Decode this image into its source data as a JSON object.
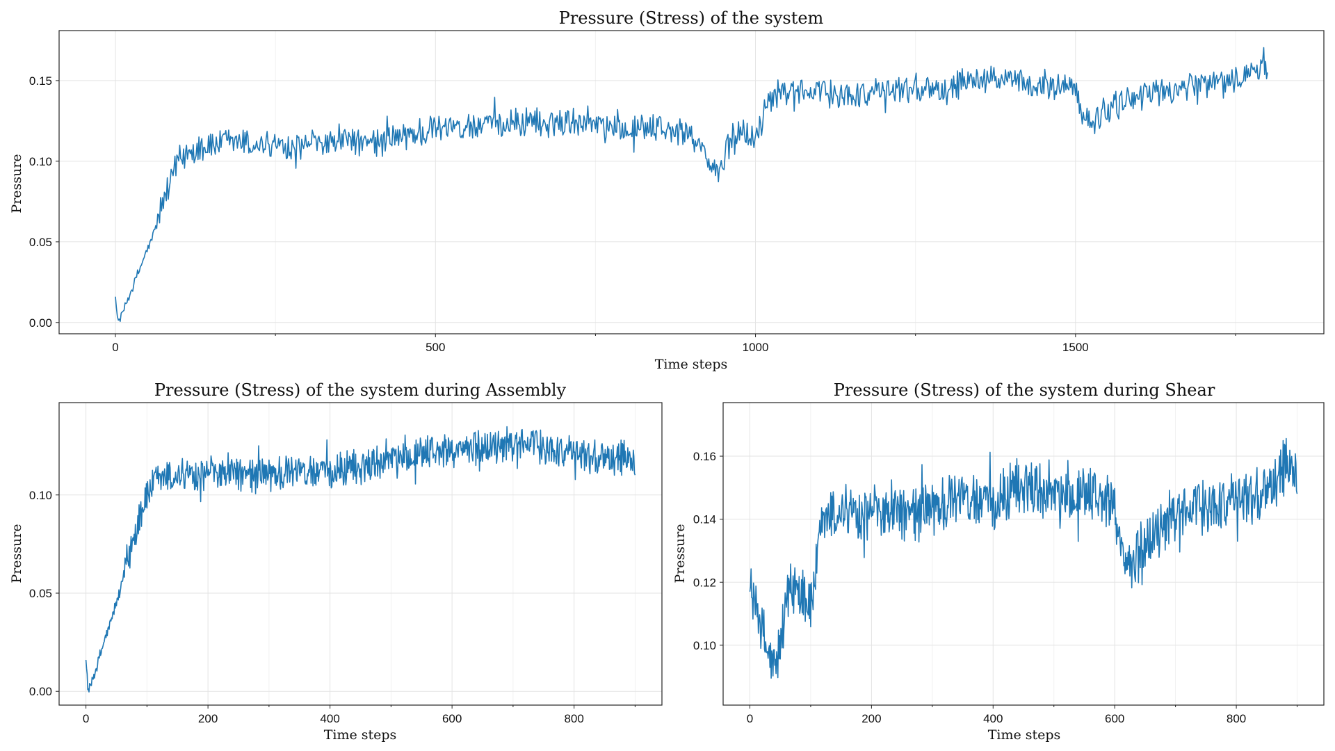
{
  "chart_data": [
    {
      "type": "line",
      "title": "Pressure (Stress) of the system",
      "xlabel": "Time steps",
      "ylabel": "Pressure",
      "xlim": [
        -88,
        1888
      ],
      "ylim": [
        -0.007,
        0.181
      ],
      "xticks": [
        0,
        500,
        1000,
        1500
      ],
      "xtick_labels": [
        "0",
        "500",
        "1000",
        "1500"
      ],
      "xminor": [
        250,
        750,
        1250,
        1750
      ],
      "yticks": [
        0.0,
        0.05,
        0.1,
        0.15
      ],
      "ytick_labels": [
        "0.00",
        "0.05",
        "0.10",
        "0.15"
      ],
      "grid": true,
      "color": "#1f77b4",
      "series": [
        {
          "x": [
            0,
            3,
            8,
            15,
            25,
            35,
            45,
            55,
            65,
            75,
            85,
            95,
            105,
            115,
            130,
            150,
            175,
            200,
            250,
            300,
            350,
            400,
            450,
            500,
            550,
            600,
            650,
            700,
            725,
            750,
            800,
            850,
            900,
            915,
            930,
            945,
            960,
            975,
            990,
            1000,
            1020,
            1050,
            1100,
            1150,
            1200,
            1250,
            1300,
            1350,
            1400,
            1450,
            1500,
            1515,
            1530,
            1545,
            1560,
            1600,
            1650,
            1700,
            1750,
            1780,
            1800
          ],
          "values": [
            0.016,
            0.001,
            0.003,
            0.01,
            0.02,
            0.03,
            0.04,
            0.05,
            0.062,
            0.075,
            0.086,
            0.096,
            0.103,
            0.106,
            0.108,
            0.11,
            0.111,
            0.111,
            0.11,
            0.11,
            0.112,
            0.111,
            0.115,
            0.12,
            0.121,
            0.123,
            0.124,
            0.125,
            0.126,
            0.124,
            0.121,
            0.12,
            0.117,
            0.11,
            0.095,
            0.094,
            0.112,
            0.12,
            0.116,
            0.112,
            0.138,
            0.143,
            0.142,
            0.141,
            0.143,
            0.147,
            0.144,
            0.152,
            0.149,
            0.148,
            0.145,
            0.126,
            0.125,
            0.131,
            0.134,
            0.141,
            0.144,
            0.146,
            0.15,
            0.156,
            0.155
          ]
        }
      ]
    },
    {
      "type": "line",
      "title": "Pressure (Stress) of the system during Assembly",
      "xlabel": "Time steps",
      "ylabel": "Pressure",
      "xlim": [
        -44,
        944
      ],
      "ylim": [
        -0.007,
        0.147
      ],
      "xticks": [
        0,
        200,
        400,
        600,
        800
      ],
      "xtick_labels": [
        "0",
        "200",
        "400",
        "600",
        "800"
      ],
      "xminor": [
        100,
        300,
        500,
        700,
        900
      ],
      "yticks": [
        0.0,
        0.05,
        0.1
      ],
      "ytick_labels": [
        "0.00",
        "0.05",
        "0.10"
      ],
      "grid": true,
      "color": "#1f77b4",
      "series": [
        {
          "x": [
            0,
            3,
            8,
            15,
            25,
            35,
            45,
            55,
            65,
            75,
            85,
            95,
            105,
            115,
            130,
            150,
            175,
            200,
            250,
            300,
            350,
            400,
            450,
            500,
            550,
            600,
            650,
            700,
            725,
            750,
            800,
            850,
            900
          ],
          "values": [
            0.016,
            0.001,
            0.003,
            0.01,
            0.02,
            0.03,
            0.04,
            0.05,
            0.062,
            0.075,
            0.086,
            0.096,
            0.103,
            0.106,
            0.108,
            0.11,
            0.111,
            0.111,
            0.11,
            0.11,
            0.112,
            0.111,
            0.115,
            0.12,
            0.121,
            0.123,
            0.124,
            0.125,
            0.126,
            0.124,
            0.121,
            0.12,
            0.117
          ]
        }
      ]
    },
    {
      "type": "line",
      "title": "Pressure (Stress) of the system during Shear",
      "xlabel": "Time steps",
      "ylabel": "Pressure",
      "xlim": [
        -44,
        944
      ],
      "ylim": [
        0.081,
        0.177
      ],
      "xticks": [
        0,
        200,
        400,
        600,
        800
      ],
      "xtick_labels": [
        "0",
        "200",
        "400",
        "600",
        "800"
      ],
      "xminor": [
        100,
        300,
        500,
        700,
        900
      ],
      "yticks": [
        0.1,
        0.12,
        0.14,
        0.16
      ],
      "ytick_labels": [
        "0.10",
        "0.12",
        "0.14",
        "0.16"
      ],
      "grid": true,
      "color": "#1f77b4",
      "series": [
        {
          "x": [
            0,
            15,
            30,
            45,
            60,
            75,
            90,
            100,
            120,
            150,
            200,
            250,
            300,
            350,
            400,
            450,
            500,
            550,
            600,
            615,
            630,
            645,
            660,
            700,
            750,
            800,
            850,
            880,
            900
          ],
          "values": [
            0.117,
            0.11,
            0.095,
            0.094,
            0.112,
            0.12,
            0.116,
            0.112,
            0.138,
            0.143,
            0.142,
            0.141,
            0.143,
            0.147,
            0.144,
            0.152,
            0.149,
            0.148,
            0.145,
            0.126,
            0.125,
            0.131,
            0.134,
            0.141,
            0.144,
            0.146,
            0.15,
            0.156,
            0.155
          ]
        }
      ]
    }
  ]
}
